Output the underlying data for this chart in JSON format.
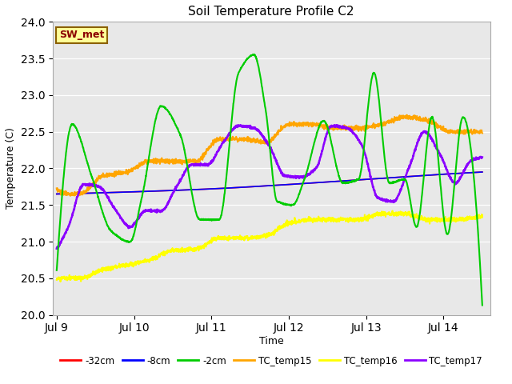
{
  "title": "Soil Temperature Profile C2",
  "xlabel": "Time",
  "ylabel": "Temperature (C)",
  "ylim": [
    20.0,
    24.0
  ],
  "yticks": [
    20.0,
    20.5,
    21.0,
    21.5,
    22.0,
    22.5,
    23.0,
    23.5,
    24.0
  ],
  "xlim_days": [
    -0.05,
    5.6
  ],
  "x_tick_labels": [
    "Jul 9",
    "Jul 10",
    "Jul 11",
    "Jul 12",
    "Jul 13",
    "Jul 14"
  ],
  "x_tick_positions": [
    0,
    1,
    2,
    3,
    4,
    5
  ],
  "annotation_text": "SW_met",
  "annotation_color": "#8B0000",
  "annotation_bg": "#FFFF99",
  "annotation_border": "#8B6000",
  "bg_color": "#E8E8E8",
  "grid_color": "#FFFFFF",
  "series": {
    "-32cm": {
      "color": "#FF0000",
      "lw": 1.2
    },
    "-8cm": {
      "color": "#0000FF",
      "lw": 1.2
    },
    "-2cm": {
      "color": "#00CC00",
      "lw": 1.5
    },
    "TC_temp15": {
      "color": "#FFA500",
      "lw": 1.5
    },
    "TC_temp16": {
      "color": "#FFFF00",
      "lw": 1.5
    },
    "TC_temp17": {
      "color": "#8B00FF",
      "lw": 1.8
    }
  },
  "green_knots_x": [
    0.0,
    0.2,
    0.45,
    0.7,
    0.95,
    1.1,
    1.35,
    1.6,
    1.85,
    2.1,
    2.35,
    2.55,
    2.7,
    2.85,
    3.05,
    3.2,
    3.45,
    3.7,
    3.9,
    4.1,
    4.3,
    4.5,
    4.65,
    4.85,
    5.05,
    5.25,
    5.45
  ],
  "green_knots_y": [
    20.6,
    22.6,
    21.9,
    21.15,
    21.0,
    21.6,
    22.85,
    22.45,
    21.3,
    21.3,
    23.3,
    23.55,
    22.8,
    21.55,
    21.5,
    21.85,
    22.65,
    21.8,
    21.85,
    23.3,
    21.8,
    21.85,
    21.2,
    22.7,
    21.1,
    22.7,
    21.05
  ],
  "orange_knots_x": [
    0.0,
    0.3,
    0.6,
    0.9,
    1.2,
    1.5,
    1.8,
    2.1,
    2.4,
    2.7,
    3.0,
    3.3,
    3.6,
    3.9,
    4.2,
    4.5,
    4.8,
    5.1,
    5.4
  ],
  "orange_knots_y": [
    21.7,
    21.65,
    21.9,
    21.95,
    22.1,
    22.1,
    22.1,
    22.4,
    22.4,
    22.35,
    22.6,
    22.6,
    22.55,
    22.55,
    22.6,
    22.7,
    22.65,
    22.5,
    22.5
  ],
  "yellow_knots_x": [
    0.0,
    0.3,
    0.6,
    0.9,
    1.2,
    1.5,
    1.8,
    2.1,
    2.4,
    2.7,
    3.0,
    3.3,
    3.6,
    3.9,
    4.2,
    4.5,
    4.8,
    5.1,
    5.4
  ],
  "yellow_knots_y": [
    20.5,
    20.5,
    20.62,
    20.68,
    20.75,
    20.88,
    20.9,
    21.05,
    21.05,
    21.08,
    21.25,
    21.3,
    21.3,
    21.3,
    21.38,
    21.38,
    21.3,
    21.3,
    21.33
  ],
  "purple_knots_x": [
    0.0,
    0.15,
    0.35,
    0.55,
    0.75,
    0.95,
    1.15,
    1.35,
    1.55,
    1.75,
    1.95,
    2.15,
    2.35,
    2.55,
    2.75,
    2.95,
    3.15,
    3.35,
    3.55,
    3.75,
    3.95,
    4.15,
    4.35,
    4.55,
    4.75,
    4.95,
    5.15,
    5.35,
    5.5
  ],
  "purple_knots_y": [
    20.9,
    21.2,
    21.78,
    21.75,
    21.45,
    21.2,
    21.42,
    21.42,
    21.75,
    22.05,
    22.05,
    22.35,
    22.58,
    22.55,
    22.3,
    21.9,
    21.88,
    22.0,
    22.58,
    22.55,
    22.3,
    21.6,
    21.55,
    22.0,
    22.5,
    22.2,
    21.8,
    22.1,
    22.15
  ],
  "red_knots_x": [
    0.0,
    1.0,
    2.0,
    3.0,
    4.0,
    5.0,
    5.5
  ],
  "red_knots_y": [
    21.65,
    21.68,
    21.72,
    21.78,
    21.85,
    21.92,
    21.95
  ],
  "blue_knots_x": [
    0.0,
    1.0,
    2.0,
    3.0,
    4.0,
    5.0,
    5.5
  ],
  "blue_knots_y": [
    21.65,
    21.68,
    21.72,
    21.78,
    21.85,
    21.92,
    21.95
  ]
}
